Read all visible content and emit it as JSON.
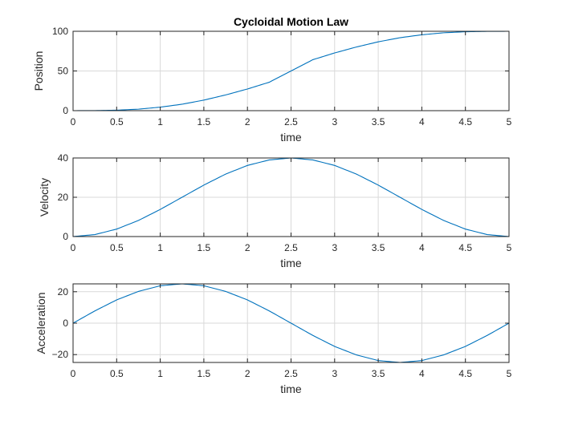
{
  "chart_data": [
    {
      "type": "line",
      "title": "Cycloidal Motion Law",
      "xlabel": "time",
      "ylabel": "Position",
      "xlim": [
        0,
        5
      ],
      "ylim": [
        0,
        100
      ],
      "xticks": [
        0,
        0.5,
        1,
        1.5,
        2,
        2.5,
        3,
        3.5,
        4,
        4.5,
        5
      ],
      "yticks": [
        0,
        50,
        100
      ],
      "grid": true,
      "color": "#0072bd",
      "series": [
        {
          "x": [
            0,
            0.25,
            0.5,
            0.75,
            1,
            1.25,
            1.5,
            1.75,
            2,
            2.25,
            2.5,
            2.75,
            3,
            3.25,
            3.5,
            3.75,
            4,
            4.25,
            4.5,
            4.75,
            5
          ],
          "y": [
            0,
            0.08,
            0.6,
            1.9,
            4.4,
            8.1,
            13.3,
            19.8,
            27.3,
            35.8,
            50,
            64.2,
            72.7,
            80.2,
            86.7,
            91.9,
            95.6,
            98.1,
            99.4,
            99.9,
            100
          ]
        }
      ]
    },
    {
      "type": "line",
      "title": "",
      "xlabel": "time",
      "ylabel": "Velocity",
      "xlim": [
        0,
        5
      ],
      "ylim": [
        0,
        40
      ],
      "xticks": [
        0,
        0.5,
        1,
        1.5,
        2,
        2.5,
        3,
        3.5,
        4,
        4.5,
        5
      ],
      "yticks": [
        0,
        20,
        40
      ],
      "grid": true,
      "color": "#0072bd",
      "series": [
        {
          "x": [
            0,
            0.25,
            0.5,
            0.75,
            1,
            1.25,
            1.5,
            1.75,
            2,
            2.25,
            2.5,
            2.75,
            3,
            3.25,
            3.5,
            3.75,
            4,
            4.25,
            4.5,
            4.75,
            5
          ],
          "y": [
            0,
            1.0,
            3.8,
            8.2,
            13.8,
            20,
            26.2,
            31.8,
            36.2,
            39.0,
            40,
            39.0,
            36.2,
            31.8,
            26.2,
            20,
            13.8,
            8.2,
            3.8,
            1.0,
            0
          ]
        }
      ]
    },
    {
      "type": "line",
      "title": "",
      "xlabel": "time",
      "ylabel": "Acceleration",
      "xlim": [
        0,
        5
      ],
      "ylim": [
        -25,
        25
      ],
      "xticks": [
        0,
        0.5,
        1,
        1.5,
        2,
        2.5,
        3,
        3.5,
        4,
        4.5,
        5
      ],
      "yticks": [
        -20,
        0,
        20
      ],
      "grid": true,
      "color": "#0072bd",
      "series": [
        {
          "x": [
            0,
            0.25,
            0.5,
            0.75,
            1,
            1.25,
            1.5,
            1.75,
            2,
            2.25,
            2.5,
            2.75,
            3,
            3.25,
            3.5,
            3.75,
            4,
            4.25,
            4.5,
            4.75,
            5
          ],
          "y": [
            0,
            7.8,
            14.8,
            20.2,
            23.8,
            25,
            23.8,
            20.2,
            14.8,
            7.8,
            0,
            -7.8,
            -14.8,
            -20.2,
            -23.8,
            -25,
            -23.8,
            -20.2,
            -14.8,
            -7.8,
            0
          ]
        }
      ]
    }
  ]
}
